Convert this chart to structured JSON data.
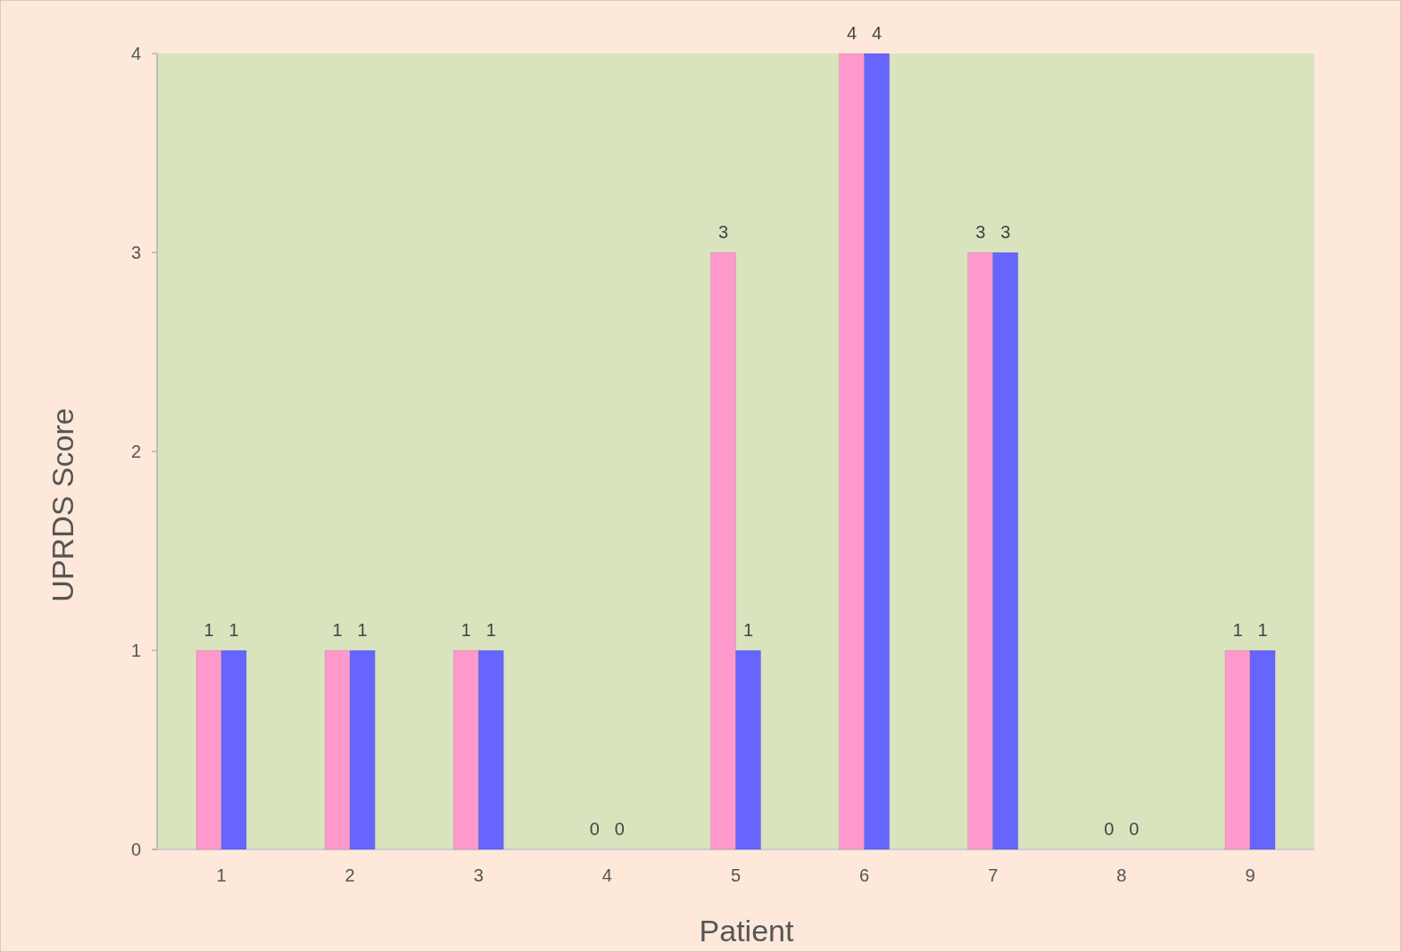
{
  "chart_data": {
    "type": "bar",
    "xlabel": "Patient",
    "ylabel": "UPRDS Score",
    "categories": [
      "1",
      "2",
      "3",
      "4",
      "5",
      "6",
      "7",
      "8",
      "9"
    ],
    "series": [
      {
        "color": "#ff99cc",
        "values": [
          1,
          1,
          1,
          0,
          3,
          4,
          3,
          0,
          1
        ]
      },
      {
        "color": "#6666ff",
        "values": [
          1,
          1,
          1,
          0,
          1,
          4,
          3,
          0,
          1
        ]
      }
    ],
    "ylim": [
      0,
      4
    ],
    "yticks": [
      0,
      1,
      2,
      3,
      4
    ],
    "data_labels": true
  }
}
